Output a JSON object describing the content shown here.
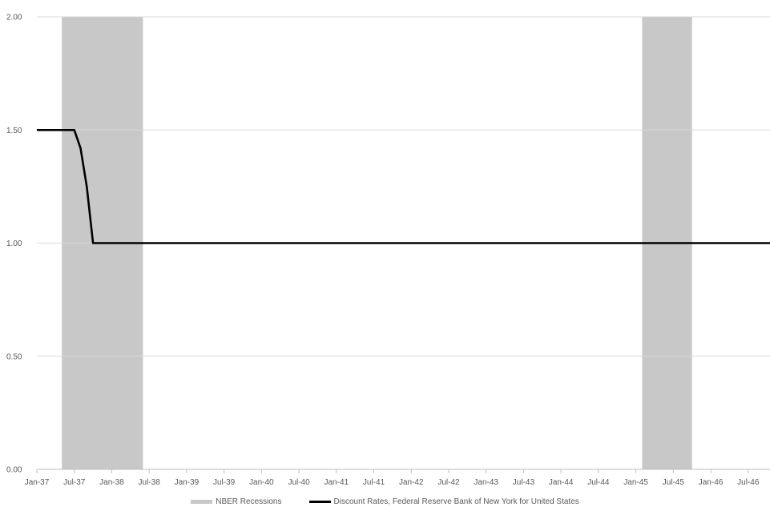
{
  "chart_data": {
    "type": "line",
    "title": "",
    "xlabel": "",
    "ylabel": "",
    "ylim": [
      0,
      2
    ],
    "y_ticks": [
      "0.00",
      "0.50",
      "1.00",
      "1.50",
      "2.00"
    ],
    "y_tick_values": [
      0,
      0.5,
      1.0,
      1.5,
      2.0
    ],
    "x_range": [
      "1937-01",
      "1946-12"
    ],
    "x_ticks": [
      "Jan-37",
      "Jul-37",
      "Jan-38",
      "Jul-38",
      "Jan-39",
      "Jul-39",
      "Jan-40",
      "Jul-40",
      "Jan-41",
      "Jul-41",
      "Jan-42",
      "Jul-42",
      "Jan-43",
      "Jul-43",
      "Jan-44",
      "Jul-44",
      "Jan-45",
      "Jul-45",
      "Jan-46",
      "Jul-46"
    ],
    "x_tick_dates": [
      "1937-01",
      "1937-07",
      "1938-01",
      "1938-07",
      "1939-01",
      "1939-07",
      "1940-01",
      "1940-07",
      "1941-01",
      "1941-07",
      "1942-01",
      "1942-07",
      "1943-01",
      "1943-07",
      "1944-01",
      "1944-07",
      "1945-01",
      "1945-07",
      "1946-01",
      "1946-07"
    ],
    "grid": true,
    "legend_position": "bottom",
    "recessions": {
      "name": "NBER Recessions",
      "color": "#c8c8c8",
      "periods": [
        [
          "1937-05",
          "1938-06"
        ],
        [
          "1945-02",
          "1945-10"
        ]
      ]
    },
    "series": [
      {
        "name": "Discount Rates, Federal Reserve Bank of New York for United States",
        "color": "#000000",
        "x": [
          "1937-01",
          "1937-07",
          "1937-08",
          "1937-09",
          "1937-10",
          "1946-12"
        ],
        "values": [
          1.5,
          1.5,
          1.42,
          1.25,
          1.0,
          1.0
        ]
      }
    ]
  }
}
